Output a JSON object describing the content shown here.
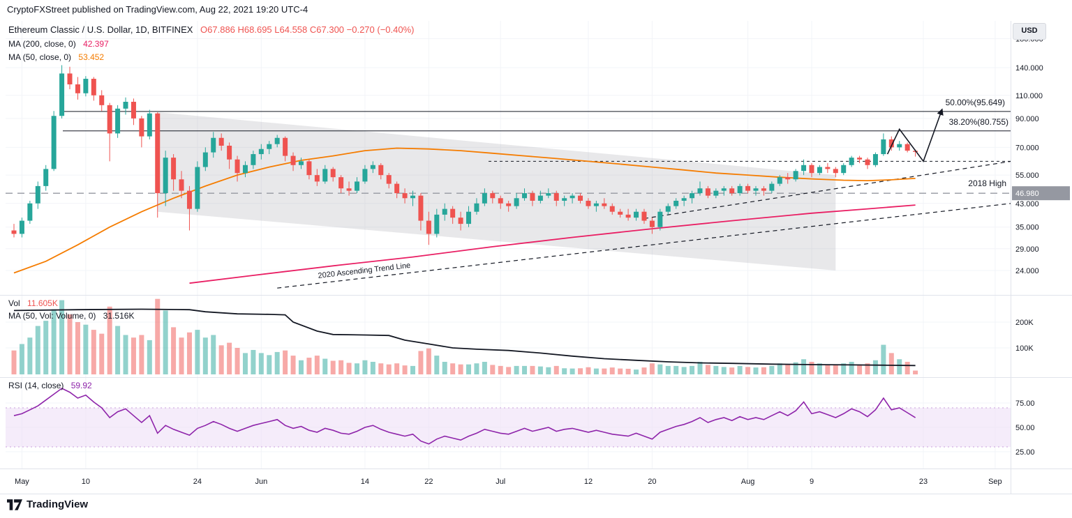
{
  "header": {
    "attribution": "CryptoFXStreet published on TradingView.com, Aug 22, 2021 19:20 UTC-4"
  },
  "footer": {
    "brand": "TradingView"
  },
  "legend": {
    "symbol_line": "Ethereum Classic / U.S. Dollar, 1D, BITFINEX",
    "ohlc_text": "O67.886 H68.695 L64.558 C67.300 −0.270 (−0.40%)",
    "ma200_label": "MA (200, close, 0)",
    "ma200_value": "42.397",
    "ma50_label": "MA (50, close, 0)",
    "ma50_value": "53.452"
  },
  "volume_legend": {
    "vol_label": "Vol",
    "vol_value": "11.605K",
    "ma_label": "MA (50, Vol: Volume, 0)",
    "ma_value": "31.516K"
  },
  "rsi_legend": {
    "label": "RSI (14, close)",
    "value": "59.92"
  },
  "annotations": {
    "fib50": "50.00%(95.649)",
    "fib382": "38.20%(80.755)",
    "high2018": "2018 High",
    "trendline": "2020 Ascending Trend Line",
    "price_badge": "46.980",
    "currency_badge": "USD"
  },
  "axes": {
    "price_ticks": [
      {
        "label": "180.000",
        "price": 180
      },
      {
        "label": "140.000",
        "price": 140
      },
      {
        "label": "110.000",
        "price": 110
      },
      {
        "label": "90.000",
        "price": 90
      },
      {
        "label": "70.000",
        "price": 70
      },
      {
        "label": "55.000",
        "price": 55
      },
      {
        "label": "43.000",
        "price": 43
      },
      {
        "label": "35.000",
        "price": 35
      },
      {
        "label": "29.000",
        "price": 29
      },
      {
        "label": "24.000",
        "price": 24
      }
    ],
    "price_badge": {
      "label": "46.980",
      "price": 46.98
    },
    "volume_ticks": [
      {
        "label": "200K",
        "v": 200
      },
      {
        "label": "100K",
        "v": 100
      }
    ],
    "rsi_ticks": [
      {
        "label": "75.00",
        "r": 75
      },
      {
        "label": "50.00",
        "r": 50
      },
      {
        "label": "25.00",
        "r": 25
      }
    ],
    "time_ticks": [
      {
        "label": "May",
        "i": 1
      },
      {
        "label": "10",
        "i": 9
      },
      {
        "label": "24",
        "i": 23
      },
      {
        "label": "Jun",
        "i": 31
      },
      {
        "label": "14",
        "i": 44
      },
      {
        "label": "22",
        "i": 52
      },
      {
        "label": "Jul",
        "i": 61
      },
      {
        "label": "12",
        "i": 72
      },
      {
        "label": "20",
        "i": 80
      },
      {
        "label": "Aug",
        "i": 92
      },
      {
        "label": "9",
        "i": 100
      },
      {
        "label": "23",
        "i": 114
      },
      {
        "label": "Sep",
        "i": 123
      }
    ]
  },
  "chart_data": {
    "type": "candlestick",
    "title": "Ethereum Classic / U.S. Dollar, 1D, BITFINEX",
    "x_axis": "Daily candles, May 1 to Aug 22 2021, axis extends to Sep",
    "price_axis": {
      "scale": "log",
      "visible_range": [
        19.5,
        210
      ]
    },
    "volume_axis_range_k": [
      0,
      300
    ],
    "rsi_axis_range": [
      0,
      100
    ],
    "rsi_band": [
      30,
      70
    ],
    "last_candle": {
      "open": 67.886,
      "high": 68.695,
      "low": 64.558,
      "close": 67.3,
      "change": -0.27,
      "change_pct": -0.4
    },
    "candles_ohlc": [
      [
        34,
        36,
        32,
        33
      ],
      [
        33,
        38,
        32,
        37
      ],
      [
        37,
        44,
        36,
        43
      ],
      [
        43,
        52,
        41,
        50
      ],
      [
        50,
        60,
        48,
        58
      ],
      [
        58,
        96,
        57,
        92
      ],
      [
        92,
        143,
        90,
        133
      ],
      [
        133,
        141,
        116,
        121
      ],
      [
        121,
        129,
        106,
        112
      ],
      [
        112,
        130,
        109,
        127
      ],
      [
        127,
        129,
        105,
        110
      ],
      [
        110,
        115,
        96,
        101
      ],
      [
        101,
        103,
        62,
        79
      ],
      [
        79,
        101,
        76,
        98
      ],
      [
        98,
        108,
        93,
        104
      ],
      [
        104,
        107,
        85,
        90
      ],
      [
        90,
        92,
        70,
        77
      ],
      [
        77,
        97,
        75,
        94
      ],
      [
        94,
        95,
        38,
        47
      ],
      [
        47,
        68,
        42,
        64
      ],
      [
        64,
        66,
        48,
        53
      ],
      [
        53,
        57,
        45,
        48
      ],
      [
        48,
        50,
        34,
        41
      ],
      [
        41,
        62,
        40,
        59
      ],
      [
        59,
        70,
        57,
        67
      ],
      [
        67,
        80,
        64,
        76
      ],
      [
        76,
        79,
        68,
        71
      ],
      [
        71,
        73,
        58,
        63
      ],
      [
        63,
        65,
        52,
        56
      ],
      [
        56,
        62,
        54,
        60
      ],
      [
        60,
        68,
        58,
        66
      ],
      [
        66,
        72,
        63,
        69
      ],
      [
        69,
        74,
        66,
        72
      ],
      [
        72,
        78,
        70,
        76
      ],
      [
        76,
        77,
        62,
        65
      ],
      [
        65,
        67,
        57,
        60
      ],
      [
        60,
        64,
        58,
        62
      ],
      [
        62,
        63,
        53,
        55
      ],
      [
        55,
        58,
        50,
        52
      ],
      [
        52,
        60,
        51,
        58
      ],
      [
        58,
        59,
        52,
        54
      ],
      [
        54,
        55,
        47,
        49
      ],
      [
        49,
        52,
        46,
        48
      ],
      [
        48,
        54,
        47,
        52
      ],
      [
        52,
        60,
        51,
        58
      ],
      [
        58,
        62,
        56,
        60
      ],
      [
        60,
        61,
        53,
        55
      ],
      [
        55,
        56,
        49,
        51
      ],
      [
        51,
        52,
        45,
        47
      ],
      [
        47,
        49,
        43,
        45
      ],
      [
        45,
        48,
        42,
        46
      ],
      [
        46,
        47,
        34,
        37
      ],
      [
        37,
        40,
        30,
        33
      ],
      [
        33,
        41,
        32,
        39
      ],
      [
        39,
        43,
        37,
        41
      ],
      [
        41,
        42,
        36,
        38
      ],
      [
        38,
        40,
        34,
        36
      ],
      [
        36,
        42,
        35,
        40
      ],
      [
        40,
        45,
        39,
        43
      ],
      [
        43,
        49,
        42,
        47
      ],
      [
        47,
        48,
        43,
        45
      ],
      [
        45,
        46,
        41,
        43
      ],
      [
        43,
        44,
        40,
        42
      ],
      [
        42,
        47,
        41,
        45
      ],
      [
        45,
        49,
        44,
        47
      ],
      [
        47,
        48,
        42,
        44
      ],
      [
        44,
        48,
        43,
        46
      ],
      [
        46,
        49,
        45,
        47
      ],
      [
        47,
        48,
        42,
        44
      ],
      [
        44,
        46,
        42,
        45
      ],
      [
        45,
        47,
        43,
        46
      ],
      [
        46,
        47,
        43,
        44
      ],
      [
        44,
        45,
        41,
        42
      ],
      [
        42,
        44,
        40,
        43
      ],
      [
        43,
        45,
        41,
        42
      ],
      [
        42,
        43,
        39,
        40
      ],
      [
        40,
        41,
        38,
        39
      ],
      [
        39,
        41,
        37,
        38
      ],
      [
        38,
        41,
        37,
        40
      ],
      [
        40,
        41,
        36,
        37
      ],
      [
        37,
        38,
        33,
        35
      ],
      [
        35,
        41,
        34,
        40
      ],
      [
        40,
        43,
        39,
        42
      ],
      [
        42,
        45,
        41,
        44
      ],
      [
        44,
        46,
        42,
        45
      ],
      [
        45,
        48,
        43,
        47
      ],
      [
        47,
        52,
        46,
        49
      ],
      [
        49,
        50,
        45,
        46
      ],
      [
        46,
        49,
        45,
        48
      ],
      [
        48,
        50,
        46,
        49
      ],
      [
        49,
        50,
        46,
        47
      ],
      [
        47,
        51,
        46,
        50
      ],
      [
        50,
        51,
        47,
        48
      ],
      [
        48,
        50,
        46,
        49
      ],
      [
        49,
        50,
        46,
        48
      ],
      [
        48,
        52,
        47,
        51
      ],
      [
        51,
        55,
        50,
        54
      ],
      [
        54,
        56,
        51,
        53
      ],
      [
        53,
        58,
        52,
        57
      ],
      [
        57,
        63,
        55,
        60
      ],
      [
        60,
        61,
        54,
        56
      ],
      [
        56,
        60,
        55,
        59
      ],
      [
        59,
        61,
        56,
        58
      ],
      [
        58,
        59,
        54,
        56
      ],
      [
        56,
        61,
        55,
        60
      ],
      [
        60,
        65,
        59,
        64
      ],
      [
        64,
        65,
        61,
        63
      ],
      [
        63,
        64,
        58,
        60
      ],
      [
        60,
        67,
        59,
        66
      ],
      [
        66,
        79,
        65,
        75
      ],
      [
        75,
        77,
        68,
        70
      ],
      [
        70,
        74,
        68,
        72
      ],
      [
        72,
        73,
        67,
        68
      ],
      [
        67.9,
        68.7,
        64.6,
        67.3
      ]
    ],
    "volume_k": [
      90,
      115,
      140,
      185,
      205,
      250,
      285,
      230,
      200,
      190,
      170,
      155,
      260,
      185,
      150,
      140,
      150,
      130,
      290,
      245,
      180,
      140,
      160,
      170,
      140,
      150,
      110,
      120,
      100,
      80,
      92,
      80,
      72,
      84,
      90,
      70,
      52,
      62,
      70,
      58,
      50,
      52,
      42,
      40,
      52,
      46,
      40,
      36,
      40,
      32,
      30,
      88,
      98,
      70,
      46,
      40,
      36,
      36,
      40,
      46,
      34,
      30,
      26,
      30,
      30,
      30,
      28,
      25,
      30,
      21,
      20,
      21,
      25,
      20,
      20,
      24,
      20,
      19,
      16,
      24,
      40,
      36,
      30,
      30,
      26,
      30,
      46,
      34,
      30,
      26,
      24,
      30,
      26,
      24,
      25,
      30,
      40,
      34,
      44,
      56,
      46,
      40,
      34,
      36,
      40,
      46,
      36,
      40,
      52,
      112,
      80,
      56,
      46,
      12
    ],
    "rsi_14": [
      62,
      64,
      68,
      72,
      78,
      84,
      90,
      86,
      80,
      83,
      76,
      70,
      60,
      66,
      69,
      62,
      55,
      62,
      44,
      52,
      48,
      45,
      42,
      49,
      52,
      56,
      53,
      49,
      46,
      49,
      52,
      54,
      56,
      58,
      52,
      49,
      51,
      47,
      45,
      49,
      47,
      44,
      43,
      46,
      50,
      52,
      48,
      45,
      43,
      41,
      43,
      36,
      33,
      38,
      41,
      39,
      37,
      41,
      44,
      48,
      46,
      44,
      43,
      46,
      49,
      46,
      48,
      50,
      46,
      48,
      49,
      47,
      45,
      47,
      45,
      43,
      42,
      41,
      44,
      41,
      38,
      45,
      48,
      51,
      53,
      56,
      60,
      55,
      58,
      60,
      57,
      61,
      58,
      60,
      58,
      62,
      66,
      62,
      67,
      76,
      64,
      66,
      63,
      60,
      64,
      69,
      66,
      61,
      68,
      80,
      68,
      70,
      65,
      59.9
    ],
    "ma50_close_points": [
      [
        0,
        23.5
      ],
      [
        4,
        26
      ],
      [
        8,
        30
      ],
      [
        12,
        35
      ],
      [
        16,
        40
      ],
      [
        20,
        45
      ],
      [
        24,
        50
      ],
      [
        28,
        55
      ],
      [
        32,
        59
      ],
      [
        36,
        62.5
      ],
      [
        40,
        65
      ],
      [
        44,
        68
      ],
      [
        48,
        69.5
      ],
      [
        52,
        69
      ],
      [
        56,
        68
      ],
      [
        60,
        66.5
      ],
      [
        64,
        65
      ],
      [
        68,
        63.5
      ],
      [
        72,
        62
      ],
      [
        76,
        60.5
      ],
      [
        80,
        59
      ],
      [
        84,
        57.5
      ],
      [
        88,
        56
      ],
      [
        92,
        55
      ],
      [
        96,
        54
      ],
      [
        100,
        53.2
      ],
      [
        104,
        52.6
      ],
      [
        107,
        52.4
      ],
      [
        110,
        52.8
      ],
      [
        113,
        53.45
      ]
    ],
    "ma200_close_points": [
      [
        22,
        21.5
      ],
      [
        30,
        23
      ],
      [
        40,
        25
      ],
      [
        50,
        27
      ],
      [
        60,
        29.5
      ],
      [
        70,
        32
      ],
      [
        80,
        34.5
      ],
      [
        90,
        37
      ],
      [
        100,
        39.5
      ],
      [
        107,
        41
      ],
      [
        113,
        42.4
      ]
    ],
    "vol_ma50_points_k": [
      [
        0,
        245
      ],
      [
        8,
        248
      ],
      [
        16,
        250
      ],
      [
        22,
        248
      ],
      [
        24,
        240
      ],
      [
        28,
        232
      ],
      [
        32,
        230
      ],
      [
        34,
        228
      ],
      [
        35,
        200
      ],
      [
        38,
        165
      ],
      [
        40,
        152
      ],
      [
        44,
        150
      ],
      [
        47,
        148
      ],
      [
        49,
        130
      ],
      [
        52,
        115
      ],
      [
        55,
        100
      ],
      [
        58,
        95
      ],
      [
        62,
        90
      ],
      [
        66,
        80
      ],
      [
        70,
        68
      ],
      [
        74,
        58
      ],
      [
        78,
        52
      ],
      [
        82,
        46
      ],
      [
        86,
        42
      ],
      [
        90,
        40
      ],
      [
        95,
        37
      ],
      [
        100,
        35
      ],
      [
        105,
        34
      ],
      [
        109,
        33
      ],
      [
        113,
        31.5
      ]
    ],
    "levels": {
      "fib_50_pct": 95.649,
      "fib_38_2_pct": 80.755,
      "high_2018": 46.98,
      "resistance": 62
    },
    "trendlines": [
      {
        "name": "2020-ascending-trend-line",
        "from": [
          33,
          20.6
        ],
        "to": [
          125,
          43
        ]
      },
      {
        "name": "short-term-ascending",
        "from": [
          79,
          37.7
        ],
        "to": [
          125,
          62
        ]
      }
    ],
    "channel_polygon": [
      [
        18,
        95
      ],
      [
        103,
        55
      ],
      [
        103,
        24
      ],
      [
        18,
        40
      ]
    ],
    "projection_arrow": [
      [
        109.5,
        66
      ],
      [
        111,
        82
      ],
      [
        114,
        62
      ],
      [
        116.3,
        96.5
      ]
    ]
  },
  "colors": {
    "up": "#26a69a",
    "down": "#ef5350",
    "vol_up": "rgba(38,166,154,0.5)",
    "vol_down": "rgba(239,83,80,0.5)",
    "ma50": "#f57c00",
    "ma200": "#e91e63",
    "vol_ma": "#131722",
    "rsi": "#8e24aa",
    "rsi_band": "#efe0f7",
    "rsi_band_border": "#c9a0dc",
    "ink": "#131722",
    "gray": "#9598a1",
    "grid": "#f2f4f8",
    "sep": "#e0e3eb",
    "channel": "#9598a1",
    "badge_bg": "#9598a1",
    "badge_text": "#ffffff"
  }
}
